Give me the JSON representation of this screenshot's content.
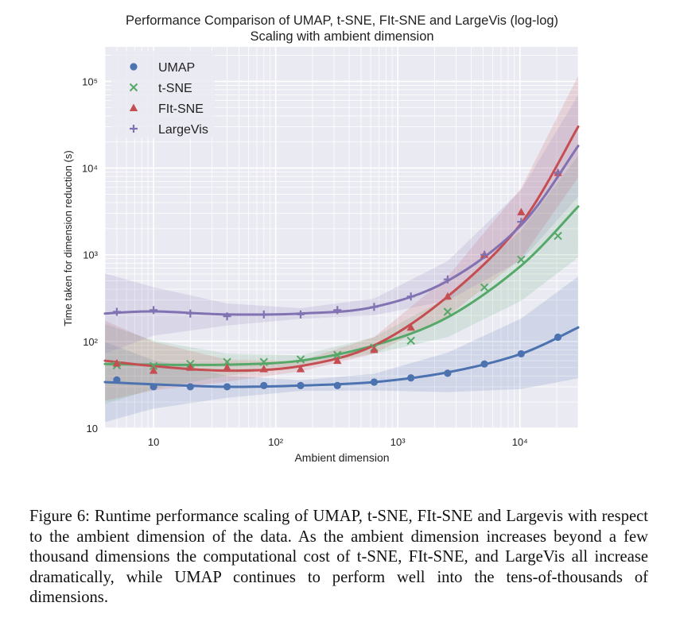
{
  "colors": {
    "background": "#eaeaf2",
    "grid": "#ffffff",
    "umap": "#4c72b0",
    "tsne": "#55a868",
    "fltsne": "#c44e52",
    "largevis": "#8172b2"
  },
  "caption": "Figure 6: Runtime performance scaling of UMAP, t-SNE, FIt-SNE and Largevis with respect to the ambient dimension of the data. As the ambient dimension increases beyond a few thousand dimensions the computational cost of t-SNE, FIt-SNE, and LargeVis all increase dramatically, while UMAP continues to perform well into the tens-of-thousands of dimensions.",
  "chart_data": {
    "type": "scatter",
    "title": "Performance Comparison of UMAP, t-SNE, FIt-SNE and LargeVis (log-log)",
    "subtitle": "Scaling with ambient dimension",
    "xlabel": "Ambient dimension",
    "ylabel": "Time taken for dimension reduction (s)",
    "xscale": "log",
    "yscale": "log",
    "xlim": [
      4,
      30000
    ],
    "ylim": [
      10,
      250000
    ],
    "grid": true,
    "legend": "top-left",
    "x_ticks": [
      {
        "value": 10,
        "label": "10"
      },
      {
        "value": 100,
        "label": "10²"
      },
      {
        "value": 1000,
        "label": "10³"
      },
      {
        "value": 10000,
        "label": "10⁴"
      }
    ],
    "y_ticks": [
      {
        "value": 10,
        "label": "10"
      },
      {
        "value": 100,
        "label": "10²"
      },
      {
        "value": 1000,
        "label": "10³"
      },
      {
        "value": 10000,
        "label": "10⁴"
      },
      {
        "value": 100000,
        "label": "10⁵"
      }
    ],
    "series": [
      {
        "name": "UMAP",
        "marker": "circle",
        "color": "#4c72b0",
        "x": [
          5,
          10,
          20,
          40,
          80,
          160,
          320,
          640,
          1280,
          2560,
          5120,
          10240,
          20480
        ],
        "y": [
          36,
          30,
          30,
          30,
          31,
          31,
          31,
          34,
          38,
          43,
          55,
          72,
          112
        ],
        "fit": [
          [
            4,
            34
          ],
          [
            10,
            32
          ],
          [
            40,
            30
          ],
          [
            160,
            31
          ],
          [
            640,
            34
          ],
          [
            2560,
            44
          ],
          [
            10240,
            72
          ],
          [
            30000,
            145
          ]
        ]
      },
      {
        "name": "t-SNE",
        "marker": "x",
        "color": "#55a868",
        "x": [
          5,
          10,
          20,
          40,
          80,
          160,
          320,
          640,
          1280,
          2560,
          5120,
          10240,
          20480
        ],
        "y": [
          53,
          52,
          55,
          58,
          58,
          62,
          70,
          85,
          102,
          220,
          420,
          880,
          1650
        ],
        "fit": [
          [
            4,
            55
          ],
          [
            10,
            54
          ],
          [
            40,
            54
          ],
          [
            160,
            60
          ],
          [
            640,
            90
          ],
          [
            2560,
            190
          ],
          [
            10240,
            750
          ],
          [
            30000,
            3600
          ]
        ]
      },
      {
        "name": "FIt-SNE",
        "marker": "triangle",
        "color": "#c44e52",
        "x": [
          5,
          10,
          20,
          40,
          80,
          160,
          320,
          640,
          1280,
          2560,
          5120,
          10240,
          20480
        ],
        "y": [
          56,
          46,
          50,
          50,
          48,
          48,
          60,
          80,
          145,
          330,
          1000,
          3100,
          8800
        ],
        "fit": [
          [
            4,
            60
          ],
          [
            10,
            52
          ],
          [
            40,
            46
          ],
          [
            160,
            52
          ],
          [
            640,
            90
          ],
          [
            2560,
            330
          ],
          [
            10240,
            2300
          ],
          [
            30000,
            30000
          ]
        ]
      },
      {
        "name": "LargeVis",
        "marker": "plus",
        "color": "#8172b2",
        "x": [
          5,
          10,
          20,
          40,
          80,
          160,
          320,
          640,
          1280,
          2560,
          5120,
          10240,
          20480
        ],
        "y": [
          220,
          230,
          210,
          195,
          205,
          205,
          230,
          250,
          330,
          520,
          1000,
          2400,
          8800
        ],
        "fit": [
          [
            4,
            210
          ],
          [
            10,
            222
          ],
          [
            40,
            205
          ],
          [
            160,
            210
          ],
          [
            640,
            250
          ],
          [
            2560,
            500
          ],
          [
            10240,
            2200
          ],
          [
            30000,
            18000
          ]
        ]
      }
    ]
  }
}
